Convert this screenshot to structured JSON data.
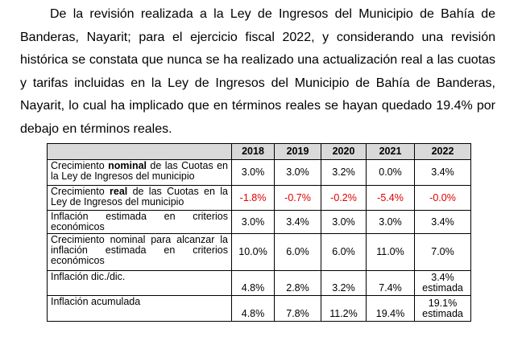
{
  "paragraph": "De la revisión realizada a la Ley de Ingresos del Municipio de Bahía de Banderas, Nayarit; para el ejercicio fiscal 2022, y considerando una revisión histórica se constata que nunca se ha realizado una actualización real a las cuotas y tarifas incluidas en la Ley de Ingresos del Municipio de Bahía de Banderas, Nayarit, lo cual ha implicado que en términos reales se hayan quedado 19.4% por debajo en términos reales.",
  "table": {
    "header": [
      "2018",
      "2019",
      "2020",
      "2021",
      "2022"
    ],
    "rows": [
      {
        "label": [
          {
            "text": "Crecimiento "
          },
          {
            "text": "nominal",
            "bold": true
          },
          {
            "text": " de las Cuotas en la Ley de Ingresos del municipio"
          }
        ],
        "values": [
          "3.0%",
          "3.0%",
          "3.2%",
          "0.0%",
          "3.4%"
        ]
      },
      {
        "label": [
          {
            "text": "Crecimiento "
          },
          {
            "text": "real",
            "bold": true
          },
          {
            "text": " de las Cuotas en la Ley de Ingresos del municipio"
          }
        ],
        "values": [
          "-1.8%",
          "-0.7%",
          "-0.2%",
          "-5.4%",
          "-0.0%"
        ],
        "color": "#e00000"
      },
      {
        "label": [
          {
            "text": "Inflación estimada en criterios económicos"
          }
        ],
        "values": [
          "3.0%",
          "3.4%",
          "3.0%",
          "3.0%",
          "3.4%"
        ]
      },
      {
        "label": [
          {
            "text": "Crecimiento nominal para alcanzar la inflación estimada en criterios económicos"
          }
        ],
        "values": [
          "10.0%",
          "6.0%",
          "6.0%",
          "11.0%",
          "7.0%"
        ]
      },
      {
        "label": [
          {
            "text": "Inflación dic./dic."
          }
        ],
        "values": [
          "4.8%",
          "2.8%",
          "3.2%",
          "7.4%",
          "3.4% estimada"
        ],
        "align": "bottom"
      },
      {
        "label": [
          {
            "text": "Inflación acumulada"
          }
        ],
        "values": [
          "4.8%",
          "7.8%",
          "11.2%",
          "19.4%",
          "19.1% estimada"
        ],
        "align": "bottom"
      }
    ]
  }
}
